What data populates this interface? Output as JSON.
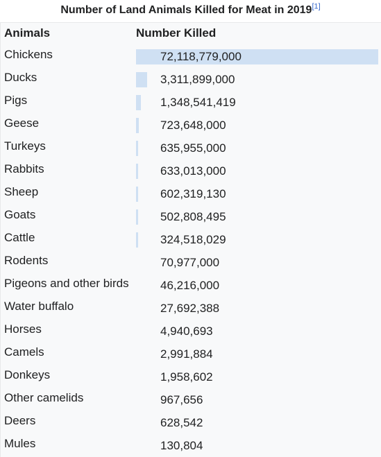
{
  "title": "Number of Land Animals Killed for Meat in 2019",
  "title_ref": "[1]",
  "headers": {
    "animal": "Animals",
    "number": "Number Killed"
  },
  "bar_color": "#cfe0f3",
  "chart_data": {
    "type": "table",
    "columns": [
      "Animals",
      "Number Killed"
    ],
    "rows": [
      {
        "animal": "Chickens",
        "number": "72,118,779,000",
        "value": 72118779000
      },
      {
        "animal": "Ducks",
        "number": "3,311,899,000",
        "value": 3311899000
      },
      {
        "animal": "Pigs",
        "number": "1,348,541,419",
        "value": 1348541419
      },
      {
        "animal": "Geese",
        "number": "723,648,000",
        "value": 723648000
      },
      {
        "animal": "Turkeys",
        "number": "635,955,000",
        "value": 635955000
      },
      {
        "animal": "Rabbits",
        "number": "633,013,000",
        "value": 633013000
      },
      {
        "animal": "Sheep",
        "number": "602,319,130",
        "value": 602319130
      },
      {
        "animal": "Goats",
        "number": "502,808,495",
        "value": 502808495
      },
      {
        "animal": "Cattle",
        "number": "324,518,029",
        "value": 324518029
      },
      {
        "animal": "Rodents",
        "number": "70,977,000",
        "value": 70977000
      },
      {
        "animal": "Pigeons and other birds",
        "number": "46,216,000",
        "value": 46216000
      },
      {
        "animal": "Water buffalo",
        "number": "27,692,388",
        "value": 27692388
      },
      {
        "animal": "Horses",
        "number": "4,940,693",
        "value": 4940693
      },
      {
        "animal": "Camels",
        "number": "2,991,884",
        "value": 2991884
      },
      {
        "animal": "Donkeys",
        "number": "1,958,602",
        "value": 1958602
      },
      {
        "animal": "Other camelids",
        "number": "967,656",
        "value": 967656
      },
      {
        "animal": "Deers",
        "number": "628,542",
        "value": 628542
      },
      {
        "animal": "Mules",
        "number": "130,804",
        "value": 130804
      }
    ]
  }
}
